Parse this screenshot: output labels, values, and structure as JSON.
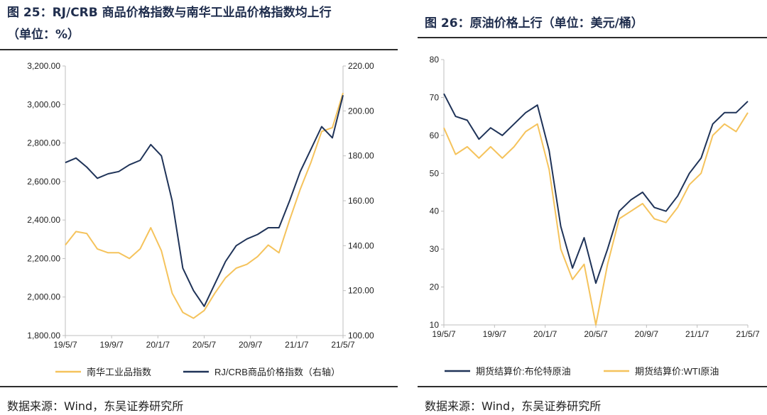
{
  "left": {
    "title_line1": "图 25：RJ/CRB 商品价格指数与南华工业品价格指数均上行",
    "title_line2": "（单位：%）",
    "source": "数据来源：Wind，东吴证券研究所"
  },
  "right": {
    "title": "图 26：原油价格上行（单位：美元/桶）",
    "source": "数据来源：Wind，东吴证券研究所"
  },
  "colors": {
    "navy": "#1f3358",
    "gold": "#f5c35c"
  },
  "chart_data": [
    {
      "type": "line",
      "title": "",
      "x_ticks": [
        "19/5/7",
        "19/9/7",
        "20/1/7",
        "20/5/7",
        "20/9/7",
        "21/1/7",
        "21/5/7"
      ],
      "x": [
        "19/5/7",
        "19/6/7",
        "19/7/7",
        "19/8/7",
        "19/9/7",
        "19/10/7",
        "19/11/7",
        "19/12/7",
        "20/1/7",
        "20/2/7",
        "20/3/7",
        "20/3/23",
        "20/4/7",
        "20/4/21",
        "20/5/7",
        "20/6/7",
        "20/7/7",
        "20/8/7",
        "20/9/7",
        "20/10/7",
        "20/11/7",
        "20/12/7",
        "21/1/7",
        "21/2/7",
        "21/3/7",
        "21/4/7",
        "21/5/7"
      ],
      "y_left_label": "",
      "y_left_ticks": [
        "1,800.00",
        "2,000.00",
        "2,200.00",
        "2,400.00",
        "2,600.00",
        "2,800.00",
        "3,000.00",
        "3,200.00"
      ],
      "ylim_left": [
        1800,
        3200
      ],
      "y_right_ticks": [
        "100.00",
        "120.00",
        "140.00",
        "160.00",
        "180.00",
        "200.00",
        "220.00"
      ],
      "ylim_right": [
        100,
        220
      ],
      "series": [
        {
          "name": "南华工业品指数",
          "axis": "left",
          "color": "#f5c35c",
          "values": [
            2270,
            2340,
            2330,
            2250,
            2230,
            2230,
            2200,
            2250,
            2360,
            2240,
            2020,
            1920,
            1890,
            1930,
            2020,
            2100,
            2150,
            2170,
            2210,
            2270,
            2230,
            2400,
            2560,
            2700,
            2860,
            2880,
            3060
          ]
        },
        {
          "name": "RJ/CRB商品价格指数（右轴）",
          "axis": "right",
          "color": "#1f3358",
          "values": [
            177,
            179,
            175,
            170,
            172,
            173,
            176,
            178,
            185,
            180,
            160,
            130,
            120,
            113,
            123,
            133,
            140,
            143,
            145,
            148,
            148,
            160,
            173,
            183,
            193,
            188,
            207
          ]
        }
      ],
      "legend": "bottom"
    },
    {
      "type": "line",
      "title": "",
      "x_ticks": [
        "19/5/7",
        "19/9/7",
        "20/1/7",
        "20/5/7",
        "20/9/7",
        "21/1/7",
        "21/5/7"
      ],
      "x": [
        "19/5/7",
        "19/6/7",
        "19/7/7",
        "19/8/7",
        "19/9/7",
        "19/10/7",
        "19/11/7",
        "19/12/7",
        "20/1/7",
        "20/2/7",
        "20/3/7",
        "20/3/23",
        "20/4/7",
        "20/4/21",
        "20/5/7",
        "20/6/7",
        "20/7/7",
        "20/8/7",
        "20/9/7",
        "20/10/7",
        "20/11/7",
        "20/12/7",
        "21/1/7",
        "21/2/7",
        "21/3/7",
        "21/4/7",
        "21/5/7"
      ],
      "y_ticks": [
        "10",
        "20",
        "30",
        "40",
        "50",
        "60",
        "70",
        "80"
      ],
      "ylim": [
        10,
        80
      ],
      "series": [
        {
          "name": "期货结算价:布伦特原油",
          "color": "#1f3358",
          "values": [
            71,
            65,
            64,
            59,
            62,
            60,
            63,
            66,
            68,
            56,
            36,
            25,
            33,
            21,
            30,
            40,
            43,
            45,
            41,
            40,
            44,
            50,
            54,
            63,
            66,
            66,
            69
          ]
        },
        {
          "name": "期货结算价:WTI原油",
          "color": "#f5c35c",
          "values": [
            62,
            55,
            57,
            54,
            57,
            54,
            57,
            61,
            63,
            51,
            30,
            22,
            26,
            10,
            26,
            38,
            40,
            42,
            38,
            37,
            41,
            47,
            50,
            60,
            63,
            61,
            66
          ]
        }
      ],
      "legend": "bottom"
    }
  ]
}
